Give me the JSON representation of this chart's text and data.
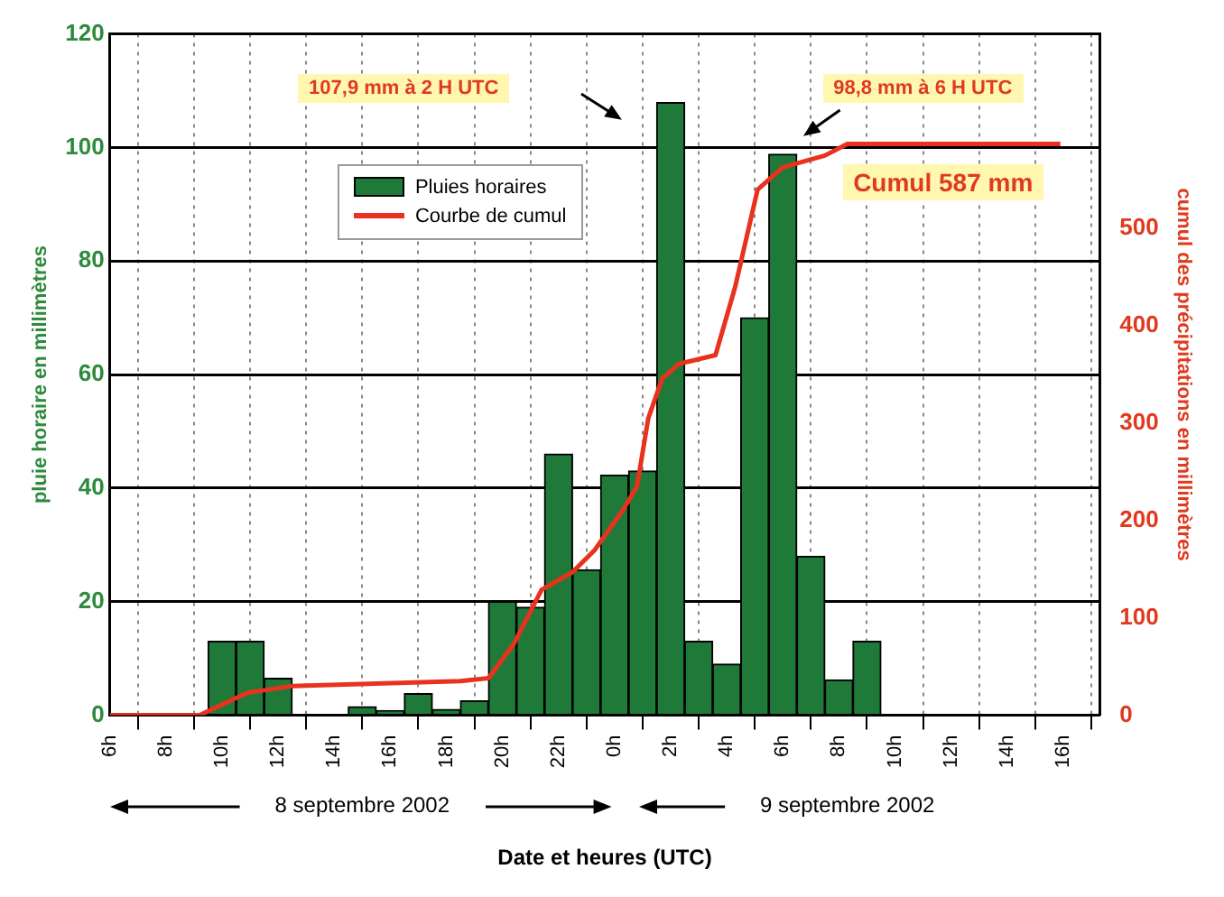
{
  "chart_data": {
    "type": "bar",
    "xlabel": "Date et heures (UTC)",
    "ylabel": "pluie horaire en millimètres",
    "y2label": "cumul des précipitations en millimètres",
    "series": [
      {
        "name": "Pluies horaires",
        "color": "#1f7a3a",
        "x": [
          "2002-09-08T10:00",
          "2002-09-08T11:00",
          "2002-09-08T12:00",
          "2002-09-08T15:00",
          "2002-09-08T16:00",
          "2002-09-08T17:00",
          "2002-09-08T18:00",
          "2002-09-08T19:00",
          "2002-09-08T20:00",
          "2002-09-08T21:00",
          "2002-09-08T22:00",
          "2002-09-08T23:00",
          "2002-09-09T00:00",
          "2002-09-09T01:00",
          "2002-09-09T02:00",
          "2002-09-09T03:00",
          "2002-09-09T04:00",
          "2002-09-09T05:00",
          "2002-09-09T06:00",
          "2002-09-09T07:00",
          "2002-09-09T08:00",
          "2002-09-09T09:00"
        ],
        "values": [
          13,
          13,
          6.5,
          1.5,
          0.8,
          3.8,
          1,
          2.5,
          20,
          19,
          46,
          25.6,
          42.3,
          43,
          107.9,
          13,
          9,
          70,
          98.8,
          28,
          6.2,
          13
        ]
      },
      {
        "name": "Courbe de cumul",
        "type": "line",
        "axis": "y2",
        "color": "#e8321e",
        "x": [
          "2002-09-08T06:00",
          "2002-09-08T09:12",
          "2002-09-08T10:54",
          "2002-09-08T12:30",
          "2002-09-08T18:30",
          "2002-09-08T19:30",
          "2002-09-08T20:24",
          "2002-09-08T21:24",
          "2002-09-08T22:30",
          "2002-09-08T23:18",
          "2002-09-09T00:18",
          "2002-09-09T00:48",
          "2002-09-09T01:12",
          "2002-09-09T01:42",
          "2002-09-09T02:18",
          "2002-09-09T03:36",
          "2002-09-09T04:18",
          "2002-09-09T05:06",
          "2002-09-09T06:00",
          "2002-09-09T07:30",
          "2002-09-09T08:18",
          "2002-09-09T15:54"
        ],
        "values": [
          0,
          0,
          23,
          30,
          35,
          38,
          73,
          129,
          147,
          170,
          211,
          235,
          305,
          346,
          361,
          370,
          440,
          540,
          563,
          575,
          587,
          587
        ]
      }
    ],
    "xlim": [
      "2002-09-08T06:00",
      "2002-09-09T17:18"
    ],
    "xticks": [
      {
        "value": "2002-09-08T06:00",
        "label": "6h"
      },
      {
        "value": "2002-09-08T08:00",
        "label": "8h"
      },
      {
        "value": "2002-09-08T10:00",
        "label": "10h"
      },
      {
        "value": "2002-09-08T12:00",
        "label": "12h"
      },
      {
        "value": "2002-09-08T14:00",
        "label": "14h"
      },
      {
        "value": "2002-09-08T16:00",
        "label": "16h"
      },
      {
        "value": "2002-09-08T18:00",
        "label": "18h"
      },
      {
        "value": "2002-09-08T20:00",
        "label": "20h"
      },
      {
        "value": "2002-09-08T22:00",
        "label": "22h"
      },
      {
        "value": "2002-09-09T00:00",
        "label": "0h"
      },
      {
        "value": "2002-09-09T02:00",
        "label": "2h"
      },
      {
        "value": "2002-09-09T04:00",
        "label": "4h"
      },
      {
        "value": "2002-09-09T06:00",
        "label": "6h"
      },
      {
        "value": "2002-09-09T08:00",
        "label": "8h"
      },
      {
        "value": "2002-09-09T10:00",
        "label": "10h"
      },
      {
        "value": "2002-09-09T12:00",
        "label": "12h"
      },
      {
        "value": "2002-09-09T14:00",
        "label": "14h"
      },
      {
        "value": "2002-09-09T16:00",
        "label": "16h"
      }
    ],
    "ylim": [
      0,
      120
    ],
    "yticks": [
      0,
      20,
      40,
      60,
      80,
      100,
      120
    ],
    "y2lim": [
      0,
      700
    ],
    "y2ticks": [
      0,
      100,
      200,
      300,
      400,
      500
    ],
    "grid": true,
    "legend": "top left",
    "marker": "none",
    "annotations": [
      "107,9 mm à 2 H UTC",
      "98,8 mm à 6 H UTC",
      "Cumul 587 mm",
      "8 septembre 2002",
      "9 septembre 2002"
    ]
  }
}
